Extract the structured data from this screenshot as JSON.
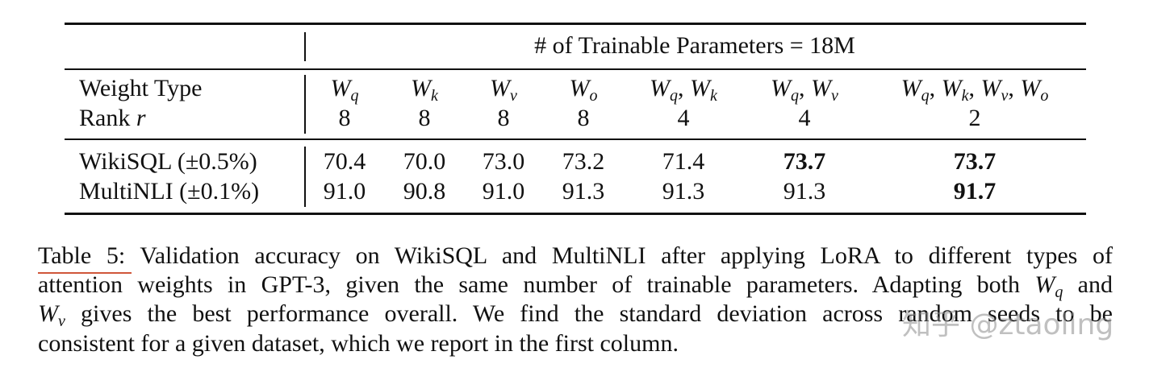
{
  "header": {
    "title": "# of Trainable Parameters = 18M"
  },
  "table": {
    "row_labels": {
      "weight": [
        {
          "t": "Weight Type"
        }
      ],
      "rank": [
        {
          "t": "Rank "
        },
        {
          "i": "r"
        }
      ]
    },
    "columns": [
      {
        "weight": [
          {
            "i": "W",
            "sub": "q"
          }
        ],
        "rank": "8"
      },
      {
        "weight": [
          {
            "i": "W",
            "sub": "k"
          }
        ],
        "rank": "8"
      },
      {
        "weight": [
          {
            "i": "W",
            "sub": "v"
          }
        ],
        "rank": "8"
      },
      {
        "weight": [
          {
            "i": "W",
            "sub": "o"
          }
        ],
        "rank": "8"
      },
      {
        "weight": [
          {
            "i": "W",
            "sub": "q"
          },
          {
            "t": ", "
          },
          {
            "i": "W",
            "sub": "k"
          }
        ],
        "rank": "4"
      },
      {
        "weight": [
          {
            "i": "W",
            "sub": "q"
          },
          {
            "t": ", "
          },
          {
            "i": "W",
            "sub": "v"
          }
        ],
        "rank": "4"
      },
      {
        "weight": [
          {
            "i": "W",
            "sub": "q"
          },
          {
            "t": ", "
          },
          {
            "i": "W",
            "sub": "k"
          },
          {
            "t": ", "
          },
          {
            "i": "W",
            "sub": "v"
          },
          {
            "t": ", "
          },
          {
            "i": "W",
            "sub": "o"
          }
        ],
        "rank": "2"
      }
    ],
    "rows": [
      {
        "label": "WikiSQL (±0.5%)",
        "values": [
          "70.4",
          "70.0",
          "73.0",
          "73.2",
          "71.4",
          "73.7",
          "73.7"
        ],
        "bold": [
          5,
          6
        ]
      },
      {
        "label": "MultiNLI (±0.1%)",
        "values": [
          "91.0",
          "90.8",
          "91.0",
          "91.3",
          "91.3",
          "91.3",
          "91.7"
        ],
        "bold": [
          6
        ]
      }
    ]
  },
  "caption": {
    "label": "Table 5:",
    "lines": [
      [
        {
          "t": "Validation accuracy on WikiSQL and MultiNLI after applying LoRA to different types of"
        }
      ],
      [
        {
          "t": "attention weights in GPT-3, given the same number of trainable parameters. Adapting both "
        },
        {
          "i": "W",
          "sub": "q"
        },
        {
          "t": " and"
        }
      ],
      [
        {
          "i": "W",
          "sub": "v"
        },
        {
          "t": " gives the best performance overall. We find the standard deviation across random seeds to be"
        }
      ],
      [
        {
          "t": "consistent for a given dataset, which we report in the first column."
        }
      ]
    ]
  },
  "watermark": "知乎 @ztaoling"
}
